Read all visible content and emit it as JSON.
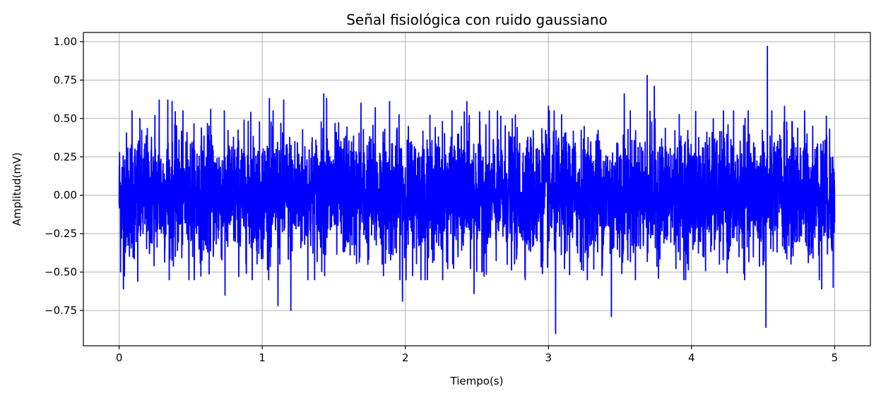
{
  "chart_data": {
    "type": "line",
    "title": "Señal fisiológica con ruido gaussiano",
    "xlabel": "Tiempo(s)",
    "ylabel": "Amplitud(mV)",
    "xlim": [
      -0.25,
      5.25
    ],
    "ylim": [
      -0.98,
      1.06
    ],
    "x_ticks": [
      0,
      1,
      2,
      3,
      4,
      5
    ],
    "x_tick_labels": [
      "0",
      "1",
      "2",
      "3",
      "4",
      "5"
    ],
    "y_ticks": [
      -0.75,
      -0.5,
      -0.25,
      0.0,
      0.25,
      0.5,
      0.75,
      1.0
    ],
    "y_tick_labels": [
      "−0.75",
      "−0.50",
      "−0.25",
      "0.00",
      "0.25",
      "0.50",
      "0.75",
      "1.00"
    ],
    "grid": true,
    "series": [
      {
        "color": "#0000ff",
        "x_range": [
          0,
          5
        ],
        "noise_std": 0.2,
        "samples_per_second": 1000,
        "peaks": [
          {
            "x": 0.01,
            "y": 0.43
          },
          {
            "x": 0.01,
            "y": -0.5
          },
          {
            "x": 0.03,
            "y": -0.61
          },
          {
            "x": 0.09,
            "y": 0.55
          },
          {
            "x": 0.13,
            "y": -0.56
          },
          {
            "x": 0.25,
            "y": 0.52
          },
          {
            "x": 0.28,
            "y": 0.62
          },
          {
            "x": 0.34,
            "y": 0.62
          },
          {
            "x": 0.37,
            "y": 0.61
          },
          {
            "x": 0.64,
            "y": 0.56
          },
          {
            "x": 0.74,
            "y": -0.65
          },
          {
            "x": 0.92,
            "y": 0.54
          },
          {
            "x": 1.05,
            "y": 0.63
          },
          {
            "x": 1.11,
            "y": -0.72
          },
          {
            "x": 1.15,
            "y": 0.62
          },
          {
            "x": 1.2,
            "y": -0.75
          },
          {
            "x": 1.43,
            "y": 0.66
          },
          {
            "x": 1.45,
            "y": 0.63
          },
          {
            "x": 1.69,
            "y": 0.6
          },
          {
            "x": 1.79,
            "y": 0.57
          },
          {
            "x": 1.89,
            "y": 0.61
          },
          {
            "x": 1.98,
            "y": -0.69
          },
          {
            "x": 2.43,
            "y": 0.61
          },
          {
            "x": 2.48,
            "y": -0.64
          },
          {
            "x": 3.0,
            "y": 0.58
          },
          {
            "x": 3.05,
            "y": -0.9
          },
          {
            "x": 3.44,
            "y": 0.73
          },
          {
            "x": 3.44,
            "y": -0.79
          },
          {
            "x": 3.53,
            "y": 0.66
          },
          {
            "x": 3.69,
            "y": 0.78
          },
          {
            "x": 3.74,
            "y": 0.71
          },
          {
            "x": 4.53,
            "y": 0.97
          },
          {
            "x": 4.52,
            "y": -0.86
          },
          {
            "x": 4.65,
            "y": 0.58
          },
          {
            "x": 4.79,
            "y": 0.55
          },
          {
            "x": 4.91,
            "y": -0.61
          },
          {
            "x": 4.99,
            "y": -0.6
          }
        ]
      }
    ]
  }
}
